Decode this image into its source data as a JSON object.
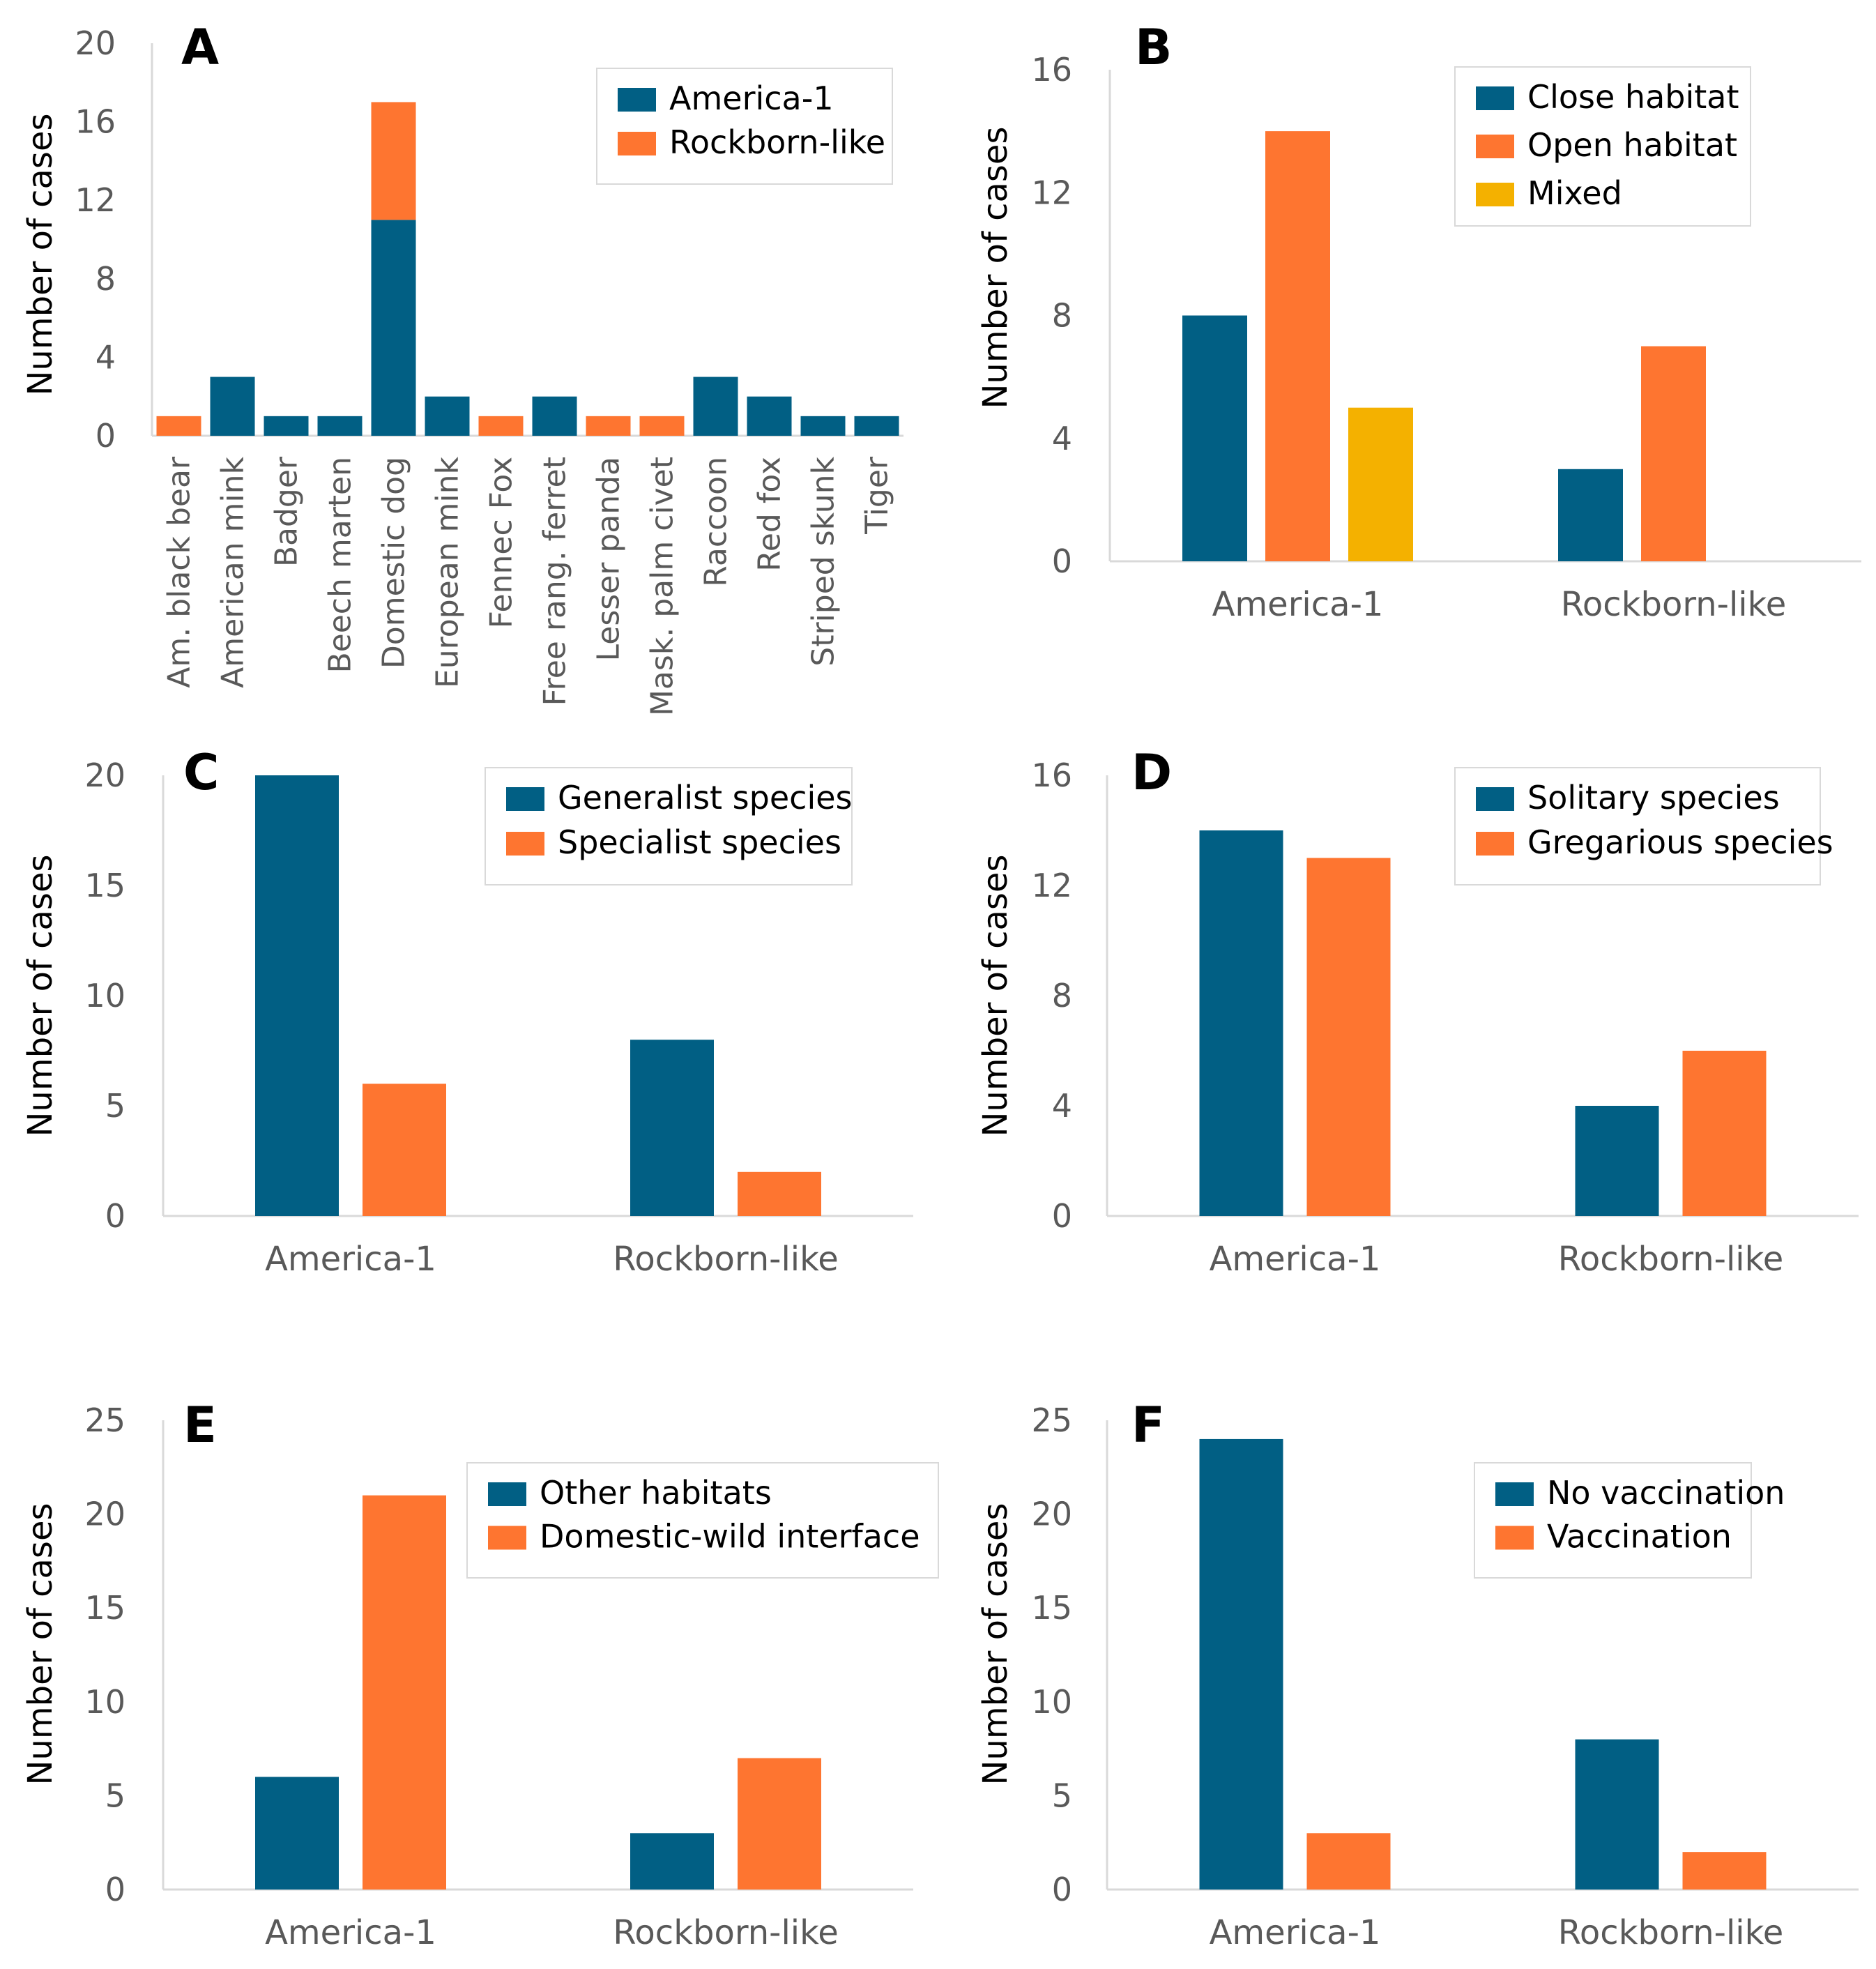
{
  "colors": {
    "blue": "#015f84",
    "orange": "#fe7530",
    "yellow": "#f4b100",
    "axis": "#d9d9d9",
    "tick_text": "#595959",
    "label_text": "#000000"
  },
  "chart_data": [
    {
      "id": "panel-a",
      "letter": "A",
      "type": "bar",
      "stacked": true,
      "ylabel": "Number of cases",
      "ylim": [
        0,
        20
      ],
      "yticks": [
        0,
        4,
        8,
        12,
        16,
        20
      ],
      "categories": [
        "Am. black bear",
        "American mink",
        "Badger",
        "Beech marten",
        "Domestic dog",
        "European mink",
        "Fennec Fox",
        "Free rang. ferret",
        "Lesser panda",
        "Mask. palm civet",
        "Raccoon",
        "Red fox",
        "Striped skunk",
        "Tiger"
      ],
      "series": [
        {
          "name": "America-1",
          "color": "blue",
          "values": [
            0,
            3,
            1,
            1,
            11,
            2,
            0,
            2,
            0,
            0,
            3,
            2,
            1,
            1
          ]
        },
        {
          "name": "Rockborn-like",
          "color": "orange",
          "values": [
            1,
            0,
            0,
            0,
            6,
            0,
            1,
            0,
            1,
            1,
            0,
            0,
            0,
            0
          ]
        }
      ],
      "legend_position": "top-right"
    },
    {
      "id": "panel-b",
      "letter": "B",
      "type": "bar",
      "stacked": false,
      "ylabel": "Number of cases",
      "ylim": [
        0,
        16
      ],
      "yticks": [
        0,
        4,
        8,
        12,
        16
      ],
      "categories": [
        "America-1",
        "Rockborn-like"
      ],
      "series": [
        {
          "name": "Close habitat",
          "color": "blue",
          "values": [
            8,
            3
          ]
        },
        {
          "name": "Open habitat",
          "color": "orange",
          "values": [
            14,
            7
          ]
        },
        {
          "name": "Mixed",
          "color": "yellow",
          "values": [
            5,
            0
          ]
        }
      ],
      "legend_position": "top-right"
    },
    {
      "id": "panel-c",
      "letter": "C",
      "type": "bar",
      "stacked": false,
      "ylabel": "Number of cases",
      "ylim": [
        0,
        20
      ],
      "yticks": [
        0,
        5,
        10,
        15,
        20
      ],
      "categories": [
        "America-1",
        "Rockborn-like"
      ],
      "series": [
        {
          "name": "Generalist species",
          "color": "blue",
          "values": [
            20,
            8
          ]
        },
        {
          "name": "Specialist species",
          "color": "orange",
          "values": [
            6,
            2
          ]
        }
      ],
      "legend_position": "top-right"
    },
    {
      "id": "panel-d",
      "letter": "D",
      "type": "bar",
      "stacked": false,
      "ylabel": "Number of cases",
      "ylim": [
        0,
        16
      ],
      "yticks": [
        0,
        4,
        8,
        12,
        16
      ],
      "categories": [
        "America-1",
        "Rockborn-like"
      ],
      "series": [
        {
          "name": "Solitary species",
          "color": "blue",
          "values": [
            14,
            4
          ]
        },
        {
          "name": "Gregarious species",
          "color": "orange",
          "values": [
            13,
            6
          ]
        }
      ],
      "legend_position": "top-right"
    },
    {
      "id": "panel-e",
      "letter": "E",
      "type": "bar",
      "stacked": false,
      "ylabel": "Number of cases",
      "ylim": [
        0,
        25
      ],
      "yticks": [
        0,
        5,
        10,
        15,
        20,
        25
      ],
      "categories": [
        "America-1",
        "Rockborn-like"
      ],
      "series": [
        {
          "name": "Other habitats",
          "color": "blue",
          "values": [
            6,
            3
          ]
        },
        {
          "name": "Domestic-wild interface",
          "color": "orange",
          "values": [
            21,
            7
          ]
        }
      ],
      "legend_position": "top-right"
    },
    {
      "id": "panel-f",
      "letter": "F",
      "type": "bar",
      "stacked": false,
      "ylabel": "Number of cases",
      "ylim": [
        0,
        25
      ],
      "yticks": [
        0,
        5,
        10,
        15,
        20,
        25
      ],
      "categories": [
        "America-1",
        "Rockborn-like"
      ],
      "series": [
        {
          "name": "No vaccination",
          "color": "blue",
          "values": [
            24,
            8
          ]
        },
        {
          "name": "Vaccination",
          "color": "orange",
          "values": [
            3,
            2
          ]
        }
      ],
      "legend_position": "top-right"
    }
  ]
}
